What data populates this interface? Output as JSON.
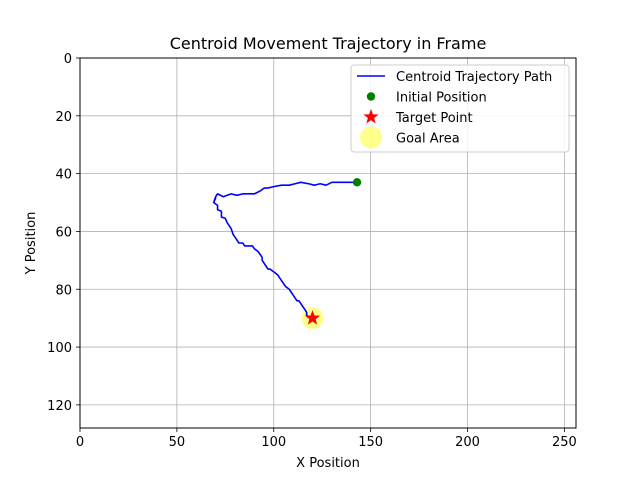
{
  "chart_data": {
    "type": "line",
    "title": "Centroid Movement Trajectory in Frame",
    "xlabel": "X Position",
    "ylabel": "Y Position",
    "xlim": [
      0,
      256
    ],
    "ylim": [
      128,
      0
    ],
    "y_inverted": true,
    "grid": true,
    "legend_position": "top-right",
    "xticks": [
      0,
      50,
      100,
      150,
      200,
      250
    ],
    "yticks": [
      0,
      20,
      40,
      60,
      80,
      100,
      120
    ],
    "series": [
      {
        "name": "Centroid Trajectory Path",
        "kind": "line",
        "color": "#0000ff",
        "x": [
          143,
          138,
          133,
          130,
          127,
          124,
          121,
          118,
          114,
          111,
          108,
          104,
          100,
          97,
          95,
          93,
          90,
          87,
          84,
          81,
          78,
          76,
          74,
          71,
          70,
          69,
          70,
          69,
          71,
          71,
          73,
          73,
          75,
          76,
          77,
          78,
          79,
          80,
          81,
          82,
          84,
          85,
          87,
          89,
          90,
          92,
          93,
          94,
          94,
          95,
          96,
          97,
          98,
          100,
          102,
          103,
          104,
          105,
          106,
          108,
          109,
          110,
          111,
          112,
          113,
          114,
          115,
          116,
          117,
          117,
          118,
          120,
          121,
          122
        ],
        "y": [
          43,
          43,
          43,
          43,
          44,
          43.5,
          44,
          43.5,
          43,
          43.5,
          44,
          44,
          44.5,
          45,
          45,
          46,
          47,
          47,
          47,
          47.5,
          47,
          47.5,
          48,
          47,
          48,
          50,
          48.5,
          50,
          51,
          52.5,
          53,
          55,
          55.5,
          57,
          58,
          59,
          61,
          62,
          63,
          64,
          64,
          65,
          65,
          65,
          66,
          67,
          68,
          69,
          70,
          71,
          72,
          73,
          73,
          74,
          75,
          76,
          77,
          78,
          79,
          80,
          81,
          82,
          83,
          84,
          84,
          85,
          86,
          87,
          88,
          89,
          89.5,
          90,
          90,
          90
        ]
      },
      {
        "name": "Initial Position",
        "kind": "point",
        "color": "#008000",
        "x": [
          143
        ],
        "y": [
          43
        ]
      },
      {
        "name": "Target Point",
        "kind": "star",
        "color": "#ff0000",
        "x": [
          120
        ],
        "y": [
          90
        ]
      },
      {
        "name": "Goal Area",
        "kind": "area",
        "color": "#ffff66",
        "x": [
          120
        ],
        "y": [
          90
        ]
      }
    ]
  }
}
